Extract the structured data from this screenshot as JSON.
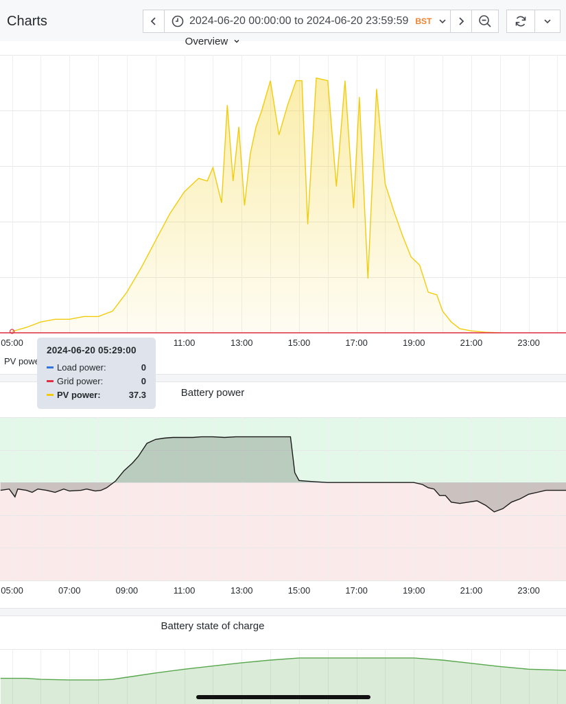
{
  "header": {
    "title": "Charts",
    "time_range": "2024-06-20 00:00:00 to 2024-06-20 23:59:59",
    "timezone": "BST",
    "icons": {
      "prev": "chevron-left-icon",
      "clock": "clock-icon",
      "dropdown": "chevron-down-icon",
      "next": "chevron-right-icon",
      "zoom_out": "zoom-out-icon",
      "refresh": "refresh-icon",
      "refresh_dropdown": "chevron-down-icon"
    }
  },
  "colors": {
    "pv": "#f2cc0c",
    "grid": "#e02f44",
    "load": "#3274d9",
    "battery_line": "#1a1a1a",
    "battery_pos_band": "#e4f8ea",
    "battery_neg_band": "#fbeaea",
    "soc": "#56a64b",
    "accent": "#f0822d"
  },
  "panels": {
    "overview": {
      "title": "Overview",
      "x_ticks": [
        "05:00",
        "11:00",
        "13:00",
        "15:00",
        "17:00",
        "19:00",
        "21:00",
        "23:00"
      ]
    },
    "battery_power": {
      "title": "Battery power",
      "x_ticks": [
        "05:00",
        "07:00",
        "09:00",
        "11:00",
        "13:00",
        "15:00",
        "17:00",
        "19:00",
        "21:00",
        "23:00"
      ]
    },
    "battery_soc": {
      "title": "Battery state of charge"
    }
  },
  "legend": {
    "pv_partial": "PV powe"
  },
  "tooltip": {
    "time": "2024-06-20 05:29:00",
    "rows": [
      {
        "name": "Load power:",
        "value": "0"
      },
      {
        "name": "Grid power:",
        "value": "0"
      },
      {
        "name": "PV power:",
        "value": "37.3"
      }
    ]
  },
  "chart_data": [
    {
      "type": "line",
      "title": "Overview",
      "x_unit": "hour of day",
      "xlim": [
        4.58,
        24.3
      ],
      "ylim": [
        0,
        100
      ],
      "y_unit": "percent of panel height (axis values not shown)",
      "grid": true,
      "series": [
        {
          "name": "PV power",
          "points": [
            [
              5.0,
              0.5
            ],
            [
              5.5,
              2
            ],
            [
              6.0,
              4
            ],
            [
              6.5,
              5
            ],
            [
              7.0,
              5
            ],
            [
              7.5,
              6
            ],
            [
              8.0,
              6
            ],
            [
              8.5,
              8
            ],
            [
              9.0,
              15
            ],
            [
              9.5,
              24
            ],
            [
              10.0,
              34
            ],
            [
              10.5,
              44
            ],
            [
              11.0,
              52
            ],
            [
              11.5,
              57
            ],
            [
              11.8,
              56
            ],
            [
              12.0,
              61
            ],
            [
              12.3,
              48
            ],
            [
              12.5,
              84
            ],
            [
              12.7,
              56
            ],
            [
              12.9,
              76
            ],
            [
              13.1,
              47
            ],
            [
              13.3,
              66
            ],
            [
              13.5,
              76
            ],
            [
              13.7,
              82
            ],
            [
              14.0,
              93
            ],
            [
              14.3,
              73
            ],
            [
              14.6,
              84
            ],
            [
              14.9,
              93
            ],
            [
              15.1,
              93
            ],
            [
              15.3,
              40
            ],
            [
              15.6,
              94
            ],
            [
              16.0,
              93
            ],
            [
              16.3,
              54
            ],
            [
              16.6,
              93
            ],
            [
              16.9,
              46
            ],
            [
              17.1,
              87
            ],
            [
              17.4,
              20
            ],
            [
              17.7,
              90
            ],
            [
              18.0,
              55
            ],
            [
              18.3,
              45
            ],
            [
              18.6,
              36
            ],
            [
              18.9,
              28
            ],
            [
              19.2,
              25
            ],
            [
              19.5,
              15
            ],
            [
              19.8,
              14
            ],
            [
              20.0,
              8
            ],
            [
              20.3,
              4
            ],
            [
              20.6,
              1.5
            ],
            [
              21.0,
              0.7
            ],
            [
              21.5,
              0.2
            ],
            [
              22.0,
              0
            ]
          ]
        },
        {
          "name": "Grid power",
          "points": [
            [
              4.58,
              0
            ],
            [
              24.3,
              0
            ]
          ]
        },
        {
          "name": "Load power",
          "points": []
        }
      ]
    },
    {
      "type": "line",
      "title": "Battery power",
      "x_unit": "hour of day",
      "xlim": [
        4.58,
        24.3
      ],
      "ylim": [
        -150,
        100
      ],
      "y_unit": "relative units (axis values not shown)",
      "grid": true,
      "series": [
        {
          "name": "Battery power",
          "points": [
            [
              4.6,
              -12
            ],
            [
              4.9,
              -10
            ],
            [
              5.1,
              -22
            ],
            [
              5.2,
              -10
            ],
            [
              5.5,
              -12
            ],
            [
              5.7,
              -15
            ],
            [
              5.9,
              -10
            ],
            [
              6.2,
              -12
            ],
            [
              6.5,
              -15
            ],
            [
              6.8,
              -10
            ],
            [
              7.0,
              -13
            ],
            [
              7.4,
              -12
            ],
            [
              7.6,
              -10
            ],
            [
              7.9,
              -13
            ],
            [
              8.1,
              -12
            ],
            [
              8.3,
              -8
            ],
            [
              8.6,
              2
            ],
            [
              8.9,
              18
            ],
            [
              9.2,
              30
            ],
            [
              9.4,
              40
            ],
            [
              9.7,
              60
            ],
            [
              10.0,
              66
            ],
            [
              10.3,
              68
            ],
            [
              10.6,
              69
            ],
            [
              11.0,
              69
            ],
            [
              11.3,
              69
            ],
            [
              11.6,
              70
            ],
            [
              12.0,
              70
            ],
            [
              12.4,
              69
            ],
            [
              12.8,
              70
            ],
            [
              13.2,
              70
            ],
            [
              13.6,
              70
            ],
            [
              14.0,
              70
            ],
            [
              14.4,
              70
            ],
            [
              14.7,
              70
            ],
            [
              14.85,
              15
            ],
            [
              15.0,
              3
            ],
            [
              15.3,
              2
            ],
            [
              15.6,
              1
            ],
            [
              16.0,
              0
            ],
            [
              16.5,
              0
            ],
            [
              17.0,
              0
            ],
            [
              17.5,
              0
            ],
            [
              18.0,
              0
            ],
            [
              18.5,
              0
            ],
            [
              19.0,
              0
            ],
            [
              19.3,
              -3
            ],
            [
              19.5,
              -8
            ],
            [
              19.7,
              -10
            ],
            [
              19.9,
              -20
            ],
            [
              20.1,
              -20
            ],
            [
              20.3,
              -30
            ],
            [
              20.6,
              -32
            ],
            [
              20.9,
              -30
            ],
            [
              21.2,
              -28
            ],
            [
              21.5,
              -35
            ],
            [
              21.8,
              -45
            ],
            [
              22.1,
              -40
            ],
            [
              22.4,
              -30
            ],
            [
              22.7,
              -25
            ],
            [
              23.0,
              -18
            ],
            [
              23.3,
              -15
            ],
            [
              23.6,
              -12
            ],
            [
              24.0,
              -12
            ],
            [
              24.3,
              -12
            ]
          ]
        }
      ]
    },
    {
      "type": "area",
      "title": "Battery state of charge",
      "x_unit": "hour of day",
      "xlim": [
        4.58,
        24.3
      ],
      "ylim": [
        0,
        100
      ],
      "y_unit": "percent of panel height (axis values not shown)",
      "grid": true,
      "series": [
        {
          "name": "Battery state of charge",
          "points": [
            [
              4.6,
              48
            ],
            [
              5.5,
              48
            ],
            [
              6.0,
              46
            ],
            [
              7.0,
              45
            ],
            [
              8.0,
              45
            ],
            [
              8.5,
              46
            ],
            [
              9.0,
              50
            ],
            [
              10.0,
              58
            ],
            [
              11.0,
              65
            ],
            [
              12.0,
              71
            ],
            [
              13.0,
              77
            ],
            [
              14.0,
              82
            ],
            [
              15.0,
              86
            ],
            [
              16.0,
              86
            ],
            [
              17.0,
              86
            ],
            [
              18.0,
              86
            ],
            [
              19.0,
              86
            ],
            [
              20.0,
              82
            ],
            [
              21.0,
              76
            ],
            [
              22.0,
              70
            ],
            [
              23.0,
              65
            ],
            [
              24.3,
              63
            ]
          ]
        }
      ]
    }
  ]
}
